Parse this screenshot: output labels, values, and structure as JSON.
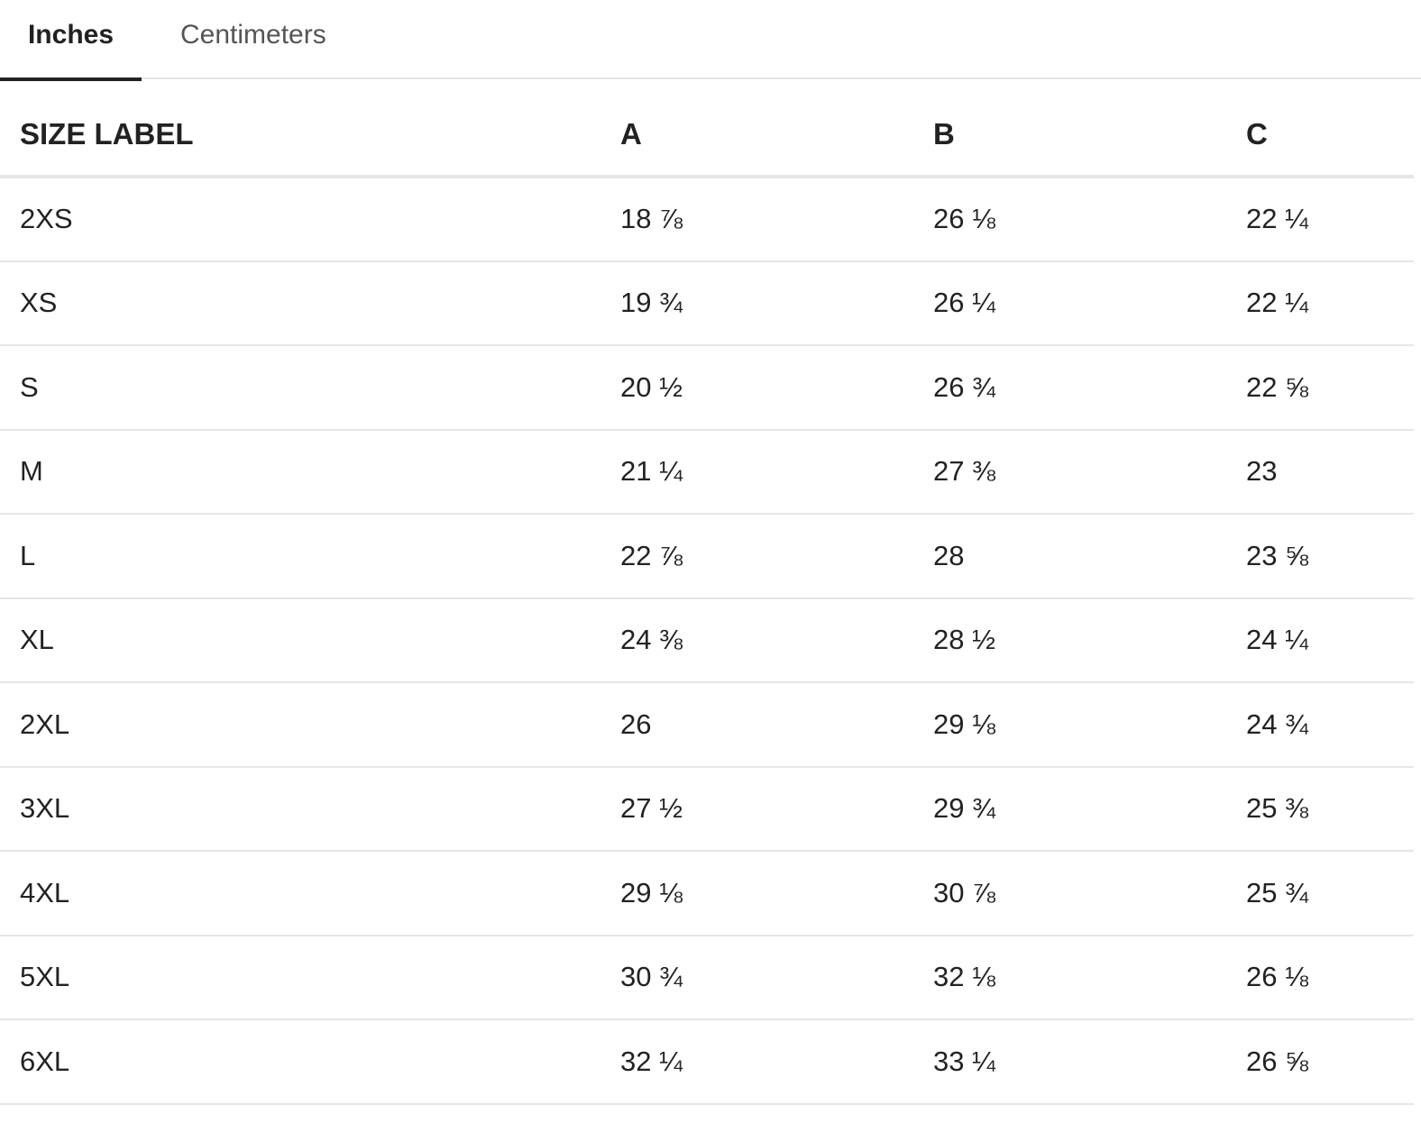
{
  "tabs": [
    {
      "label": "Inches",
      "active": true
    },
    {
      "label": "Centimeters",
      "active": false
    }
  ],
  "table": {
    "headers": [
      "SIZE LABEL",
      "A",
      "B",
      "C"
    ],
    "rows": [
      [
        "2XS",
        "18 ⅞",
        "26 ⅛",
        "22 ¼"
      ],
      [
        "XS",
        "19 ¾",
        "26 ¼",
        "22 ¼"
      ],
      [
        "S",
        "20 ½",
        "26 ¾",
        "22 ⅝"
      ],
      [
        "M",
        "21 ¼",
        "27 ⅜",
        "23"
      ],
      [
        "L",
        "22 ⅞",
        "28",
        "23 ⅝"
      ],
      [
        "XL",
        "24 ⅜",
        "28 ½",
        "24 ¼"
      ],
      [
        "2XL",
        "26",
        "29 ⅛",
        "24 ¾"
      ],
      [
        "3XL",
        "27 ½",
        "29 ¾",
        "25 ⅜"
      ],
      [
        "4XL",
        "29 ⅛",
        "30 ⅞",
        "25 ¾"
      ],
      [
        "5XL",
        "30 ¾",
        "32 ⅛",
        "26 ⅛"
      ],
      [
        "6XL",
        "32 ¼",
        "33 ¼",
        "26 ⅝"
      ]
    ]
  }
}
